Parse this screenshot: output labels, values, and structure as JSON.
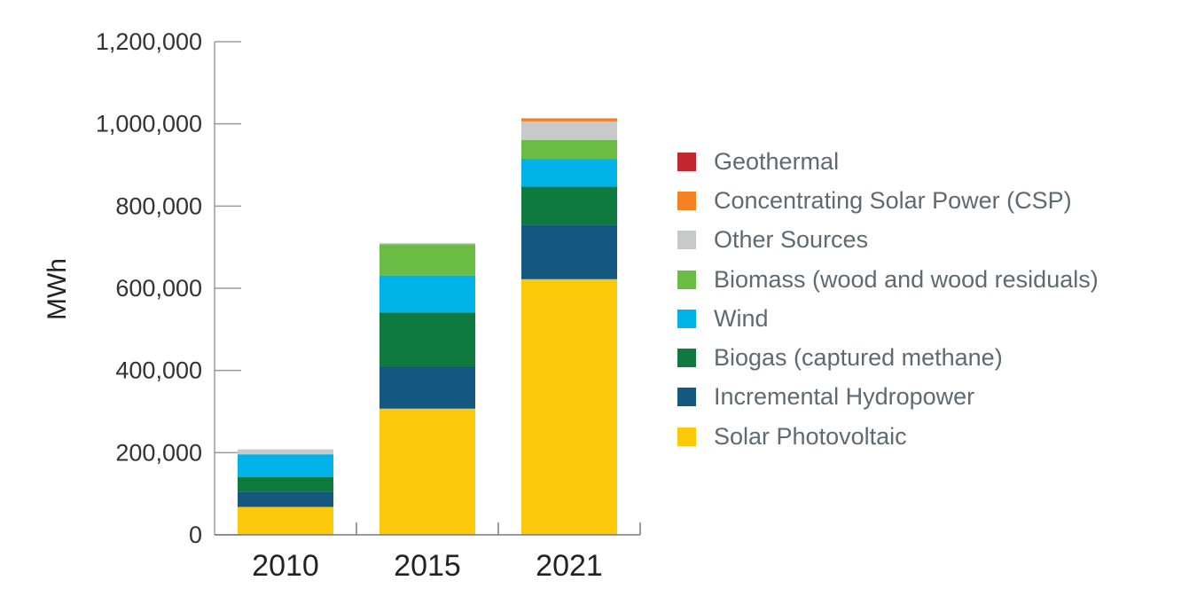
{
  "chart_data": {
    "type": "bar",
    "stacked": true,
    "categories": [
      "2010",
      "2015",
      "2021"
    ],
    "ylabel": "MWh",
    "ylim": [
      0,
      1200000
    ],
    "yticks": [
      0,
      200000,
      400000,
      600000,
      800000,
      1000000,
      1200000
    ],
    "ytick_labels": [
      "0",
      "200,000",
      "400,000",
      "600,000",
      "800,000",
      "1,000,000",
      "1,200,000"
    ],
    "legend_position": "right",
    "series": [
      {
        "name": "Solar Photovoltaic",
        "color": "#FBC90A",
        "values": [
          68000,
          307000,
          622000
        ]
      },
      {
        "name": "Incremental Hydropower",
        "color": "#14587F",
        "values": [
          37000,
          102000,
          133000
        ]
      },
      {
        "name": "Biogas (captured methane)",
        "color": "#0E7A3D",
        "values": [
          36000,
          132000,
          92000
        ]
      },
      {
        "name": "Wind",
        "color": "#00B2E8",
        "values": [
          55000,
          90000,
          68000
        ]
      },
      {
        "name": "Biomass (wood and wood residuals)",
        "color": "#6ABC45",
        "values": [
          0,
          76000,
          46000
        ]
      },
      {
        "name": "Other Sources",
        "color": "#C8CACA",
        "values": [
          12000,
          3000,
          45000
        ]
      },
      {
        "name": "Concentrating Solar Power (CSP)",
        "color": "#F58220",
        "values": [
          0,
          0,
          6000
        ]
      },
      {
        "name": "Geothermal",
        "color": "#C1272D",
        "values": [
          0,
          0,
          1000
        ]
      }
    ]
  }
}
